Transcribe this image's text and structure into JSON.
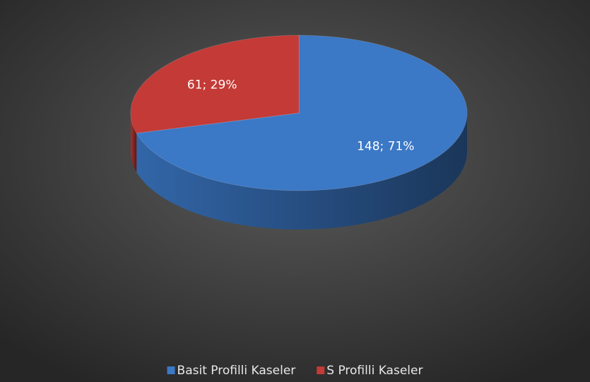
{
  "chart_data": {
    "type": "pie",
    "categories": [
      "Basit Profilli Kaseler",
      "S Profilli Kaseler"
    ],
    "values": [
      148,
      61
    ],
    "value_labels": [
      "148; 71%",
      "61; 29%"
    ],
    "colors": [
      "#3b78c6",
      "#c33a36"
    ],
    "legend": "bottom"
  }
}
